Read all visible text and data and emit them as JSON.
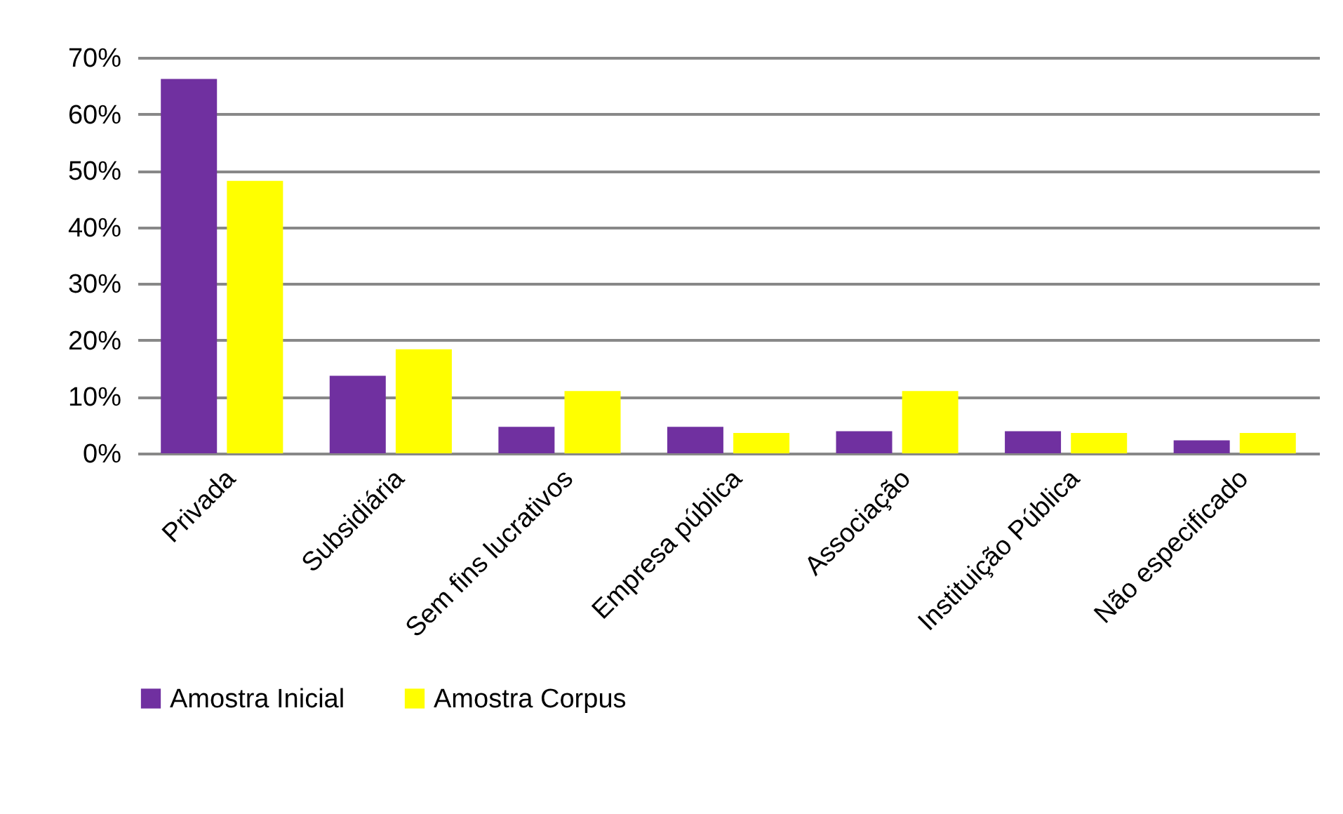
{
  "chart_data": {
    "type": "bar",
    "categories": [
      "Privada",
      "Subsidiária",
      "Sem fins lucrativos",
      "Empresa pública",
      "Associação",
      "Instituição Pública",
      "Não especificado"
    ],
    "series": [
      {
        "name": "Amostra Inicial",
        "color": "#7030a0",
        "values": [
          66.2,
          13.7,
          4.7,
          4.7,
          3.9,
          3.9,
          2.3
        ]
      },
      {
        "name": "Amostra Corpus",
        "color": "#ffff00",
        "values": [
          48.2,
          18.4,
          11.0,
          3.6,
          11.0,
          3.6,
          3.6
        ]
      }
    ],
    "ylim": [
      0,
      70
    ],
    "yticks": [
      {
        "value": 0,
        "label": "0%"
      },
      {
        "value": 10,
        "label": "10%"
      },
      {
        "value": 20,
        "label": "20%"
      },
      {
        "value": 30,
        "label": "30%"
      },
      {
        "value": 40,
        "label": "40%"
      },
      {
        "value": 50,
        "label": "50%"
      },
      {
        "value": 60,
        "label": "60%"
      },
      {
        "value": 70,
        "label": "70%"
      }
    ],
    "grid": "y",
    "legend": "bottom"
  }
}
